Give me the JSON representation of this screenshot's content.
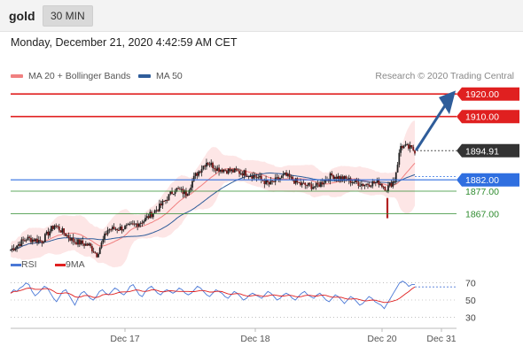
{
  "header": {
    "symbol": "gold",
    "timeframe": "30 MIN"
  },
  "datetime": "Monday, December 21, 2020 4:42:59 AM CET",
  "legend": {
    "ma20_label": "MA 20 + Bollinger Bands",
    "ma50_label": "MA 50",
    "credit": "Research © 2020 Trading Central",
    "ma20_color": "#f08080",
    "ma50_color": "#2f5d9a"
  },
  "rsi_legend": {
    "rsi_label": "RSI",
    "ma_label": "9MA",
    "rsi_color": "#4a78d6",
    "ma_color": "#e02020"
  },
  "colors": {
    "resistance": "#e02020",
    "pivot": "#2f6fe0",
    "support": "#2e8b2e",
    "current": "#333333",
    "arrow": "#2f5d9a",
    "bollinger_fill": "#fde3e3"
  },
  "chart_data": {
    "type": "candlestick",
    "y_range": [
      1848,
      1924
    ],
    "levels": [
      {
        "label": "1920.00",
        "value": 1920,
        "kind": "resistance"
      },
      {
        "label": "1910.00",
        "value": 1910,
        "kind": "resistance"
      },
      {
        "label": "1894.91",
        "value": 1894.91,
        "kind": "current"
      },
      {
        "label": "1882.00",
        "value": 1882,
        "kind": "pivot"
      },
      {
        "label": "1877.00",
        "value": 1877,
        "kind": "support"
      },
      {
        "label": "1867.00",
        "value": 1867,
        "kind": "support"
      }
    ],
    "x_labels": [
      "Dec 17",
      "Dec 18",
      "Dec 20",
      "Dec 31"
    ],
    "rsi": {
      "levels": [
        "70",
        "50",
        "30"
      ],
      "values": [
        58,
        62,
        60,
        64,
        66,
        70,
        68,
        60,
        55,
        58,
        62,
        66,
        64,
        58,
        52,
        48,
        54,
        60,
        62,
        56,
        50,
        44,
        52,
        58,
        60,
        56,
        52,
        50,
        54,
        60,
        62,
        58,
        56,
        60,
        64,
        62,
        58,
        56,
        60,
        66,
        68,
        62,
        56,
        54,
        60,
        64,
        66,
        62,
        58,
        56,
        60,
        62,
        60,
        58,
        60,
        64,
        62,
        58,
        56,
        58,
        62,
        66,
        64,
        60,
        56,
        54,
        58,
        62,
        60,
        58,
        54,
        52,
        56,
        60,
        58,
        54,
        50,
        52,
        56,
        58,
        56,
        54,
        52,
        56,
        60,
        58,
        54,
        50,
        52,
        56,
        58,
        56,
        52,
        50,
        54,
        58,
        60,
        56,
        54,
        52,
        56,
        58,
        54,
        50,
        48,
        52,
        56,
        54,
        50,
        46,
        50,
        54,
        52,
        48,
        44,
        46,
        50,
        54,
        52,
        48,
        46,
        44,
        40,
        46,
        52,
        58,
        64,
        70,
        72,
        70,
        66,
        68,
        68
      ]
    }
  }
}
